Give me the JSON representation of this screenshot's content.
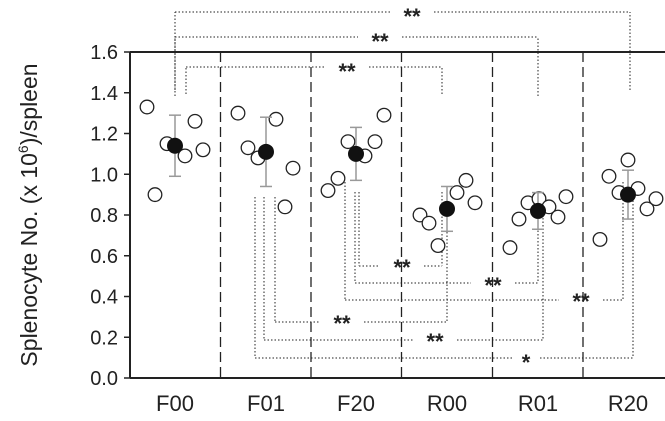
{
  "chart_data": {
    "type": "scatter",
    "ylabel_main": "Splenocyte No. (x 10",
    "ylabel_sup": "6",
    "ylabel_tail": ")/spleen",
    "ylim": [
      0,
      1.6
    ],
    "yticks": [
      "0.0",
      "0.2",
      "0.4",
      "0.6",
      "0.8",
      "1.0",
      "1.2",
      "1.4",
      "1.6"
    ],
    "categories": [
      "F00",
      "F01",
      "F20",
      "R00",
      "R01",
      "R20"
    ],
    "individual_points": [
      [
        1.33,
        0.9,
        1.15,
        1.09,
        1.26,
        1.12
      ],
      [
        1.3,
        1.13,
        1.08,
        1.27,
        0.84,
        1.03
      ],
      [
        0.92,
        0.98,
        1.16,
        1.09,
        1.16,
        1.29
      ],
      [
        0.8,
        0.76,
        0.65,
        0.91,
        0.97,
        0.86
      ],
      [
        0.64,
        0.78,
        0.86,
        0.88,
        0.84,
        0.79,
        0.89
      ],
      [
        0.68,
        0.99,
        0.91,
        1.07,
        0.93,
        0.83,
        0.88
      ]
    ],
    "means": [
      1.14,
      1.11,
      1.1,
      0.83,
      0.82,
      0.9
    ],
    "sd": [
      0.15,
      0.17,
      0.13,
      0.11,
      0.09,
      0.12
    ],
    "significance": [
      {
        "from": "F00",
        "to": "R20",
        "label": "**"
      },
      {
        "from": "F00",
        "to": "R01",
        "label": "**"
      },
      {
        "from": "F00",
        "to": "R00",
        "label": "**"
      },
      {
        "from": "F20",
        "to": "R00",
        "label": "**"
      },
      {
        "from": "F20",
        "to": "R01",
        "label": "**"
      },
      {
        "from": "F20",
        "to": "R20",
        "label": "**"
      },
      {
        "from": "F01",
        "to": "R00",
        "label": "**"
      },
      {
        "from": "F01",
        "to": "R01",
        "label": "**"
      },
      {
        "from": "F01",
        "to": "R20",
        "label": "*"
      }
    ],
    "grid": false,
    "colors": {
      "axis": "#222222",
      "mean_marker": "#111111",
      "point_fill": "#ffffff",
      "error_bar": "#999999"
    }
  }
}
